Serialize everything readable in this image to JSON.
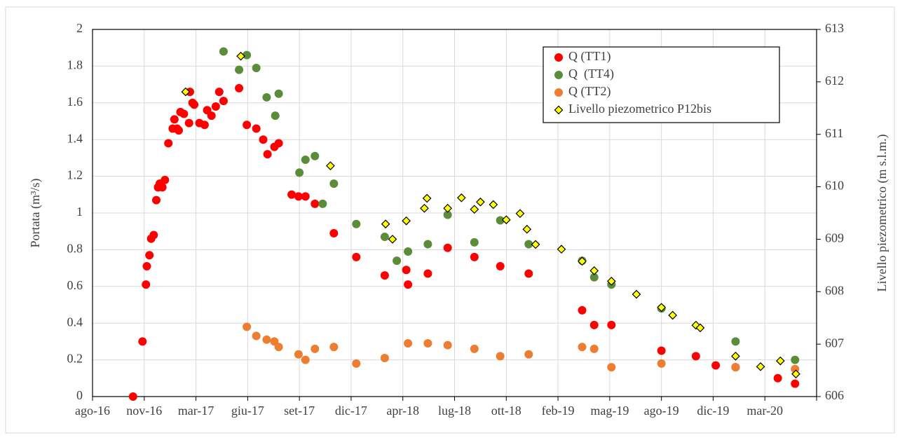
{
  "chart_data": {
    "type": "scatter",
    "y_label": "Portata (m³/s)",
    "y2_label": "Livello piezometrico (m s.l.m.)",
    "xlim": [
      0,
      42
    ],
    "xticks": [
      {
        "value": 0,
        "label": "ago-16"
      },
      {
        "value": 3,
        "label": "nov-16"
      },
      {
        "value": 6,
        "label": "mar-17"
      },
      {
        "value": 9,
        "label": "giu-17"
      },
      {
        "value": 12,
        "label": "set-17"
      },
      {
        "value": 15,
        "label": "dic-17"
      },
      {
        "value": 18,
        "label": "apr-18"
      },
      {
        "value": 21,
        "label": "lug-18"
      },
      {
        "value": 24,
        "label": "ott-18"
      },
      {
        "value": 27,
        "label": "feb-19"
      },
      {
        "value": 30,
        "label": "mag-19"
      },
      {
        "value": 33,
        "label": "ago-19"
      },
      {
        "value": 36,
        "label": "dic-19"
      },
      {
        "value": 39,
        "label": "mar-20"
      },
      {
        "value": 42,
        "label": ""
      }
    ],
    "ylim": [
      0,
      2
    ],
    "yticks": [
      0,
      0.2,
      0.4,
      0.6,
      0.8,
      1,
      1.2,
      1.4,
      1.6,
      1.8,
      2
    ],
    "y2lim": [
      606,
      613
    ],
    "y2ticks": [
      606,
      607,
      608,
      609,
      610,
      611,
      612,
      613
    ],
    "grid": true,
    "legend": "upper right",
    "series": [
      {
        "name": "Q (TT1)",
        "color": "#ff0000",
        "marker": "circle",
        "x": [
          2.35,
          2.9,
          3.1,
          3.15,
          3.3,
          3.4,
          3.55,
          3.7,
          3.8,
          3.9,
          4.05,
          4.2,
          4.4,
          4.65,
          4.75,
          4.9,
          5.0,
          5.1,
          5.3,
          5.6,
          5.65,
          5.8,
          5.9,
          6.2,
          6.5,
          6.65,
          6.9,
          7.15,
          7.35,
          7.6,
          8.5,
          8.95,
          9.5,
          9.9,
          10.15,
          10.55,
          10.8,
          11.55,
          11.95,
          12.35,
          12.9,
          14.0,
          15.3,
          16.95,
          18.2,
          18.3,
          19.45,
          20.6,
          22.15,
          23.65,
          25.3,
          28.4,
          29.1,
          30.1,
          33.0,
          35.0,
          36.15,
          37.3,
          39.75,
          40.75
        ],
        "values": [
          0,
          0.3,
          0.61,
          0.71,
          0.77,
          0.86,
          0.88,
          1.07,
          1.14,
          1.16,
          1.14,
          1.18,
          1.38,
          1.46,
          1.51,
          1.46,
          1.45,
          1.55,
          1.54,
          1.49,
          1.66,
          1.6,
          1.59,
          1.49,
          1.48,
          1.56,
          1.53,
          1.58,
          1.66,
          1.61,
          1.68,
          1.48,
          1.46,
          1.4,
          1.32,
          1.36,
          1.38,
          1.1,
          1.09,
          1.09,
          1.05,
          0.89,
          0.76,
          0.66,
          0.69,
          0.61,
          0.67,
          0.81,
          0.76,
          0.71,
          0.67,
          0.47,
          0.39,
          0.39,
          0.25,
          0.22,
          0.17,
          0.16,
          0.1,
          0.07
        ]
      },
      {
        "name": "Q  (TT4)",
        "color": "#5b8c3a",
        "marker": "circle",
        "x": [
          7.6,
          8.5,
          8.95,
          9.5,
          10.1,
          10.6,
          10.8,
          12.0,
          12.35,
          12.9,
          13.35,
          14.0,
          15.3,
          16.95,
          17.65,
          18.3,
          19.45,
          20.6,
          22.15,
          23.65,
          25.3,
          28.4,
          29.1,
          30.1,
          33.0,
          37.3,
          40.75
        ],
        "values": [
          1.88,
          1.78,
          1.86,
          1.79,
          1.63,
          1.53,
          1.65,
          1.22,
          1.29,
          1.31,
          1.05,
          1.16,
          0.94,
          0.87,
          0.74,
          0.79,
          0.83,
          0.99,
          0.84,
          0.96,
          0.83,
          0.74,
          0.65,
          0.61,
          0.48,
          0.3,
          0.2
        ]
      },
      {
        "name": "Q (TT2)",
        "color": "#ed7d31",
        "marker": "circle",
        "x": [
          8.95,
          9.5,
          10.1,
          10.55,
          10.8,
          11.95,
          12.35,
          12.9,
          14.0,
          15.3,
          16.95,
          18.3,
          19.45,
          20.6,
          22.15,
          23.65,
          25.3,
          28.4,
          29.1,
          30.1,
          33.0,
          37.3,
          40.75
        ],
        "values": [
          0.38,
          0.33,
          0.31,
          0.3,
          0.27,
          0.23,
          0.2,
          0.26,
          0.27,
          0.18,
          0.21,
          0.29,
          0.29,
          0.28,
          0.26,
          0.22,
          0.23,
          0.27,
          0.26,
          0.16,
          0.18,
          0.16,
          0.15
        ]
      },
      {
        "name": "Livello piezometrico P12bis",
        "color": "#ffff00",
        "marker": "diamond",
        "axis": "y2",
        "x": [
          5.4,
          8.6,
          13.8,
          17.0,
          17.4,
          18.2,
          19.25,
          19.4,
          20.6,
          21.4,
          22.15,
          22.5,
          23.25,
          24.0,
          24.8,
          25.2,
          25.7,
          27.2,
          28.4,
          29.1,
          30.1,
          31.55,
          33.0,
          33.65,
          35.0,
          35.25,
          37.3,
          38.75,
          39.9,
          40.8
        ],
        "values": [
          611.81,
          612.49,
          610.4,
          609.29,
          609.0,
          609.35,
          609.59,
          609.78,
          609.59,
          609.79,
          609.57,
          609.71,
          609.66,
          609.37,
          609.49,
          609.19,
          608.9,
          608.81,
          608.58,
          608.4,
          608.2,
          607.95,
          607.7,
          607.55,
          607.36,
          607.31,
          606.77,
          606.57,
          606.68,
          606.43
        ]
      }
    ]
  }
}
